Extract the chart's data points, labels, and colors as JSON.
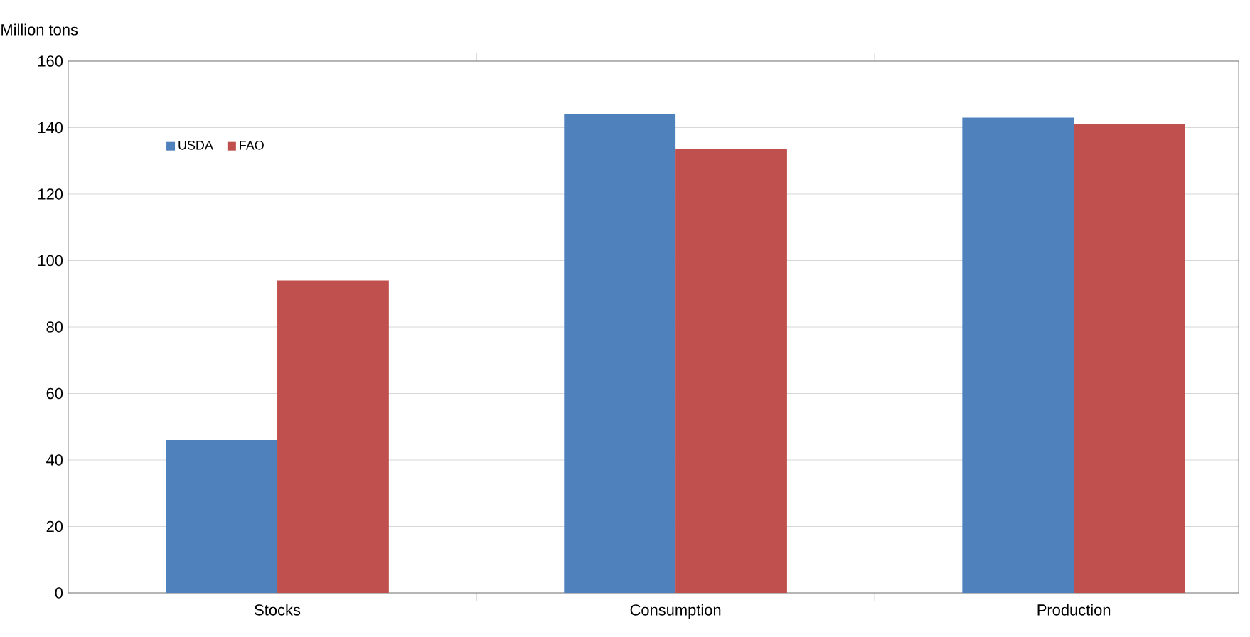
{
  "chart_data": {
    "type": "bar",
    "ylabel": "Million tons",
    "categories": [
      "Stocks",
      "Consumption",
      "Production"
    ],
    "series": [
      {
        "name": "USDA",
        "color": "#4f81bd",
        "values": [
          46,
          144,
          143
        ]
      },
      {
        "name": "FAO",
        "color": "#c0504d",
        "values": [
          94,
          133.5,
          141
        ]
      }
    ],
    "ylim": [
      0,
      160
    ],
    "yticks": [
      0,
      20,
      40,
      60,
      80,
      100,
      120,
      140,
      160
    ],
    "grid": "y",
    "legend": "top left"
  }
}
